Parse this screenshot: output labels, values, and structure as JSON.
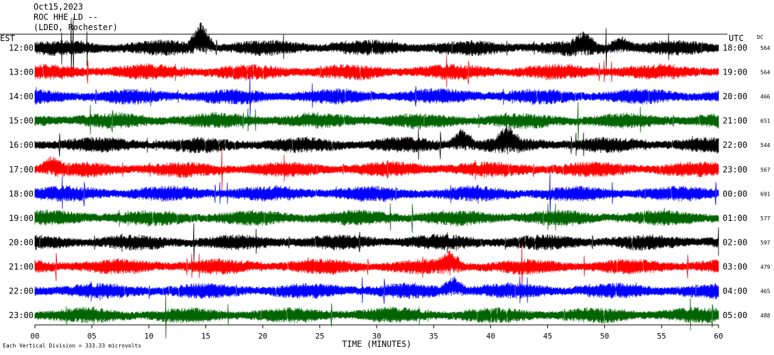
{
  "header": {
    "date": "Oct15,2023",
    "station": "ROC HHE LD --",
    "location": "(LDEO, Rochester)"
  },
  "chart_data": {
    "type": "line",
    "left_axis_title": "EST",
    "right_axis_title": "UTC",
    "dc_title": "DC",
    "xlabel": "TIME (MINUTES)",
    "xlim": [
      0,
      60
    ],
    "x_ticks": [
      "00",
      "05",
      "10",
      "15",
      "20",
      "25",
      "30",
      "35",
      "40",
      "45",
      "50",
      "55",
      "60"
    ],
    "rows": [
      {
        "est": "12:00",
        "utc": "18:00",
        "dc": "564",
        "color": "#000000"
      },
      {
        "est": "13:00",
        "utc": "19:00",
        "dc": "564",
        "color": "#ff0000"
      },
      {
        "est": "14:00",
        "utc": "20:00",
        "dc": "466",
        "color": "#0000ff"
      },
      {
        "est": "15:00",
        "utc": "21:00",
        "dc": "651",
        "color": "#006400"
      },
      {
        "est": "16:00",
        "utc": "22:00",
        "dc": "544",
        "color": "#000000"
      },
      {
        "est": "17:00",
        "utc": "23:00",
        "dc": "567",
        "color": "#ff0000"
      },
      {
        "est": "18:00",
        "utc": "00:00",
        "dc": "691",
        "color": "#0000ff"
      },
      {
        "est": "19:00",
        "utc": "01:00",
        "dc": "577",
        "color": "#006400"
      },
      {
        "est": "20:00",
        "utc": "02:00",
        "dc": "597",
        "color": "#000000"
      },
      {
        "est": "21:00",
        "utc": "03:00",
        "dc": "479",
        "color": "#ff0000"
      },
      {
        "est": "22:00",
        "utc": "04:00",
        "dc": "465",
        "color": "#0000ff"
      },
      {
        "est": "23:00",
        "utc": "05:00",
        "dc": "488",
        "color": "#006400"
      }
    ],
    "events": [
      {
        "row": 0,
        "minute": 14.6,
        "amplitude": 1.0
      },
      {
        "row": 0,
        "minute": 48.2,
        "amplitude": 0.5
      },
      {
        "row": 0,
        "minute": 51.5,
        "amplitude": 0.4
      },
      {
        "row": 4,
        "minute": 37.5,
        "amplitude": 0.6
      },
      {
        "row": 4,
        "minute": 41.5,
        "amplitude": 0.6
      },
      {
        "row": 5,
        "minute": 1.5,
        "amplitude": 0.4
      },
      {
        "row": 9,
        "minute": 36.5,
        "amplitude": 0.5
      },
      {
        "row": 10,
        "minute": 36.8,
        "amplitude": 0.5
      }
    ],
    "footer": "Each Vertical Division = 333.33 microvolts"
  }
}
